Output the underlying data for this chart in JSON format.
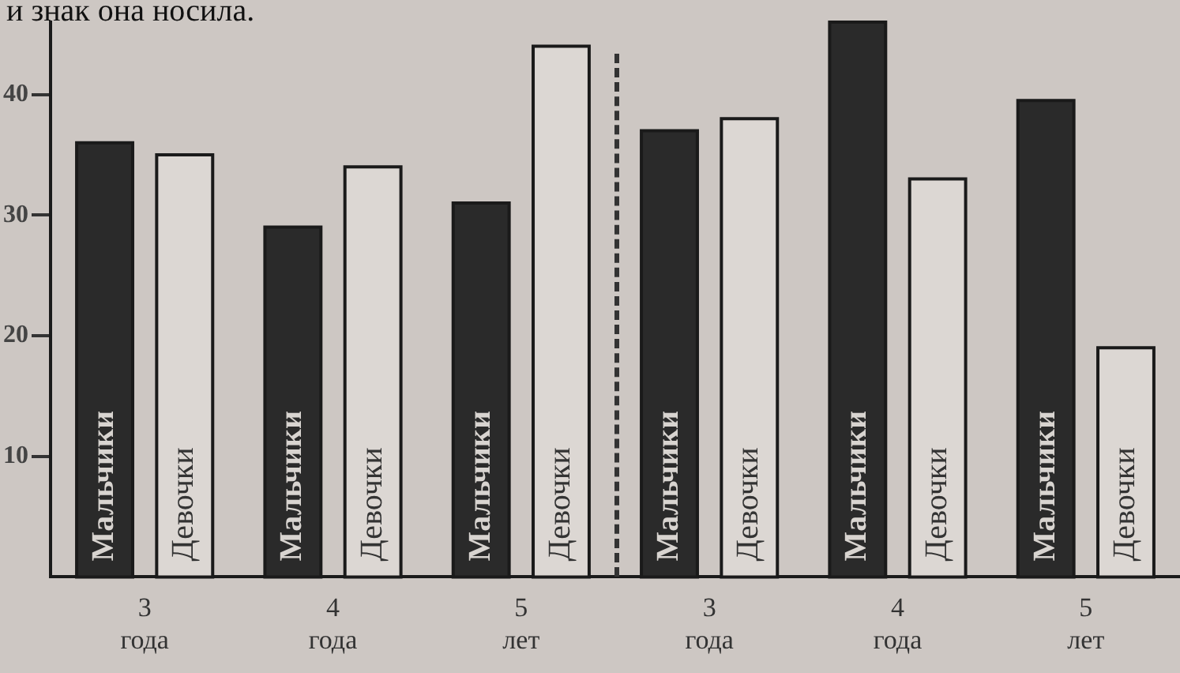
{
  "chart_data": {
    "type": "bar",
    "annotations": [
      "и знак она носила."
    ],
    "categories": [
      "3\nгода",
      "4\nгода",
      "5\nлет",
      "3\nгода",
      "4\nгода",
      "5\nлет"
    ],
    "series": [
      {
        "name": "Мальчики",
        "color": "#2a2a2a",
        "values": [
          36,
          29,
          31,
          37,
          46,
          39.5
        ]
      },
      {
        "name": "Девочки",
        "color": "#dcd7d3",
        "values": [
          35,
          34,
          44,
          38,
          33,
          19
        ]
      }
    ],
    "ylim": [
      0,
      46
    ],
    "yticks": [
      10,
      20,
      30,
      40
    ],
    "grid": false,
    "legend": false
  }
}
